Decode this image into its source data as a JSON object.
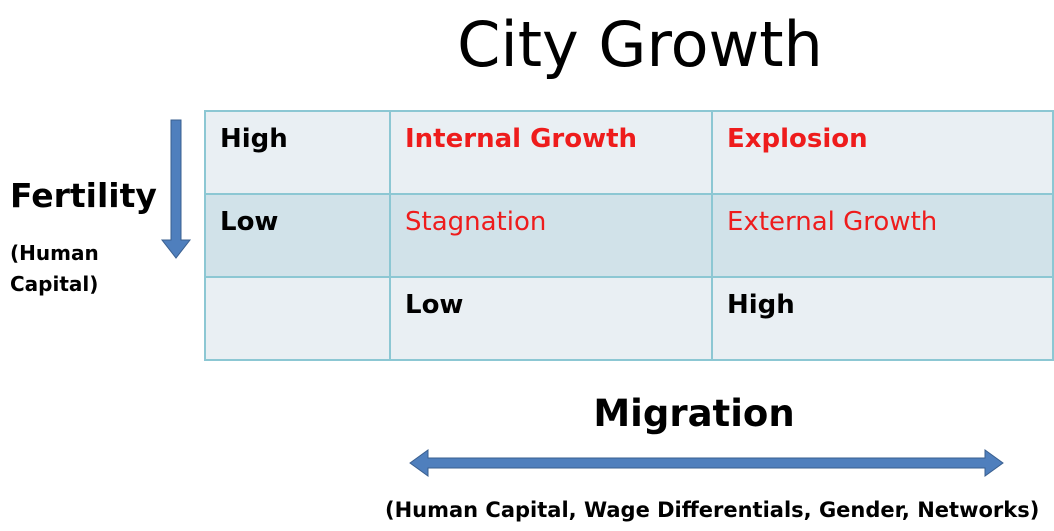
{
  "title": "City Growth",
  "y_axis": {
    "label": "Fertility",
    "sublabel_lines": [
      "(Human",
      "Capital)"
    ]
  },
  "x_axis": {
    "label": "Migration",
    "sublabel": "(Human Capital, Wage Differentials, Gender, Networks)"
  },
  "table": {
    "rows": [
      [
        "High",
        "Internal Growth",
        "Explosion"
      ],
      [
        "Low",
        "Stagnation",
        "External Growth"
      ],
      [
        null,
        "Low",
        "High"
      ]
    ]
  }
}
